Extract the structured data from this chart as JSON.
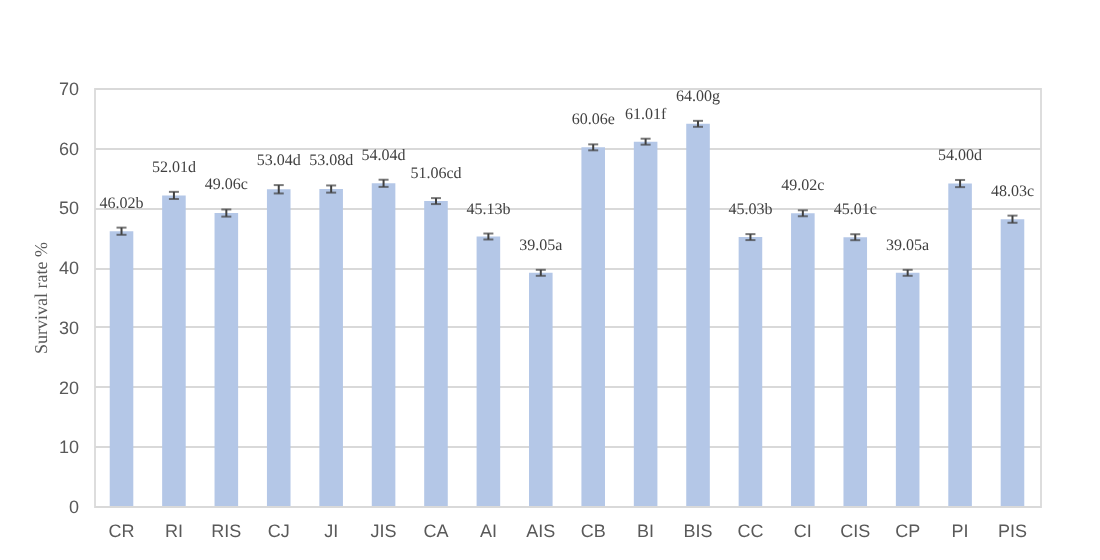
{
  "chart_data": {
    "type": "bar",
    "ylabel": "Survival rate %",
    "categories": [
      "CR",
      "RI",
      "RIS",
      "CJ",
      "JI",
      "JIS",
      "CA",
      "AI",
      "AIS",
      "CB",
      "BI",
      "BIS",
      "CC",
      "CI",
      "CIS",
      "CP",
      "PI",
      "PIS"
    ],
    "values": [
      46.02,
      52.01,
      49.06,
      53.04,
      53.08,
      54.04,
      51.06,
      45.13,
      39.05,
      60.06,
      61.01,
      64.0,
      45.03,
      49.02,
      45.01,
      39.05,
      54.0,
      48.03
    ],
    "value_labels": [
      "46.02b",
      "52.01d",
      "49.06c",
      "53.04d",
      "53.08d",
      "54.04d",
      "51.06cd",
      "45.13b",
      "39.05a",
      "60.06e",
      "61.01f",
      "64.00g",
      "45.03b",
      "49.02c",
      "45.01c",
      "39.05a",
      "54.00d",
      "48.03c"
    ],
    "errors": [
      0.6,
      0.6,
      0.6,
      0.7,
      0.6,
      0.6,
      0.5,
      0.5,
      0.5,
      0.5,
      0.5,
      0.5,
      0.5,
      0.5,
      0.5,
      0.5,
      0.6,
      0.6
    ],
    "color": "#b4c7e7",
    "ylim": [
      0,
      70
    ],
    "yticks": [
      0,
      10,
      20,
      30,
      40,
      50,
      60,
      70
    ],
    "grid": "y"
  }
}
